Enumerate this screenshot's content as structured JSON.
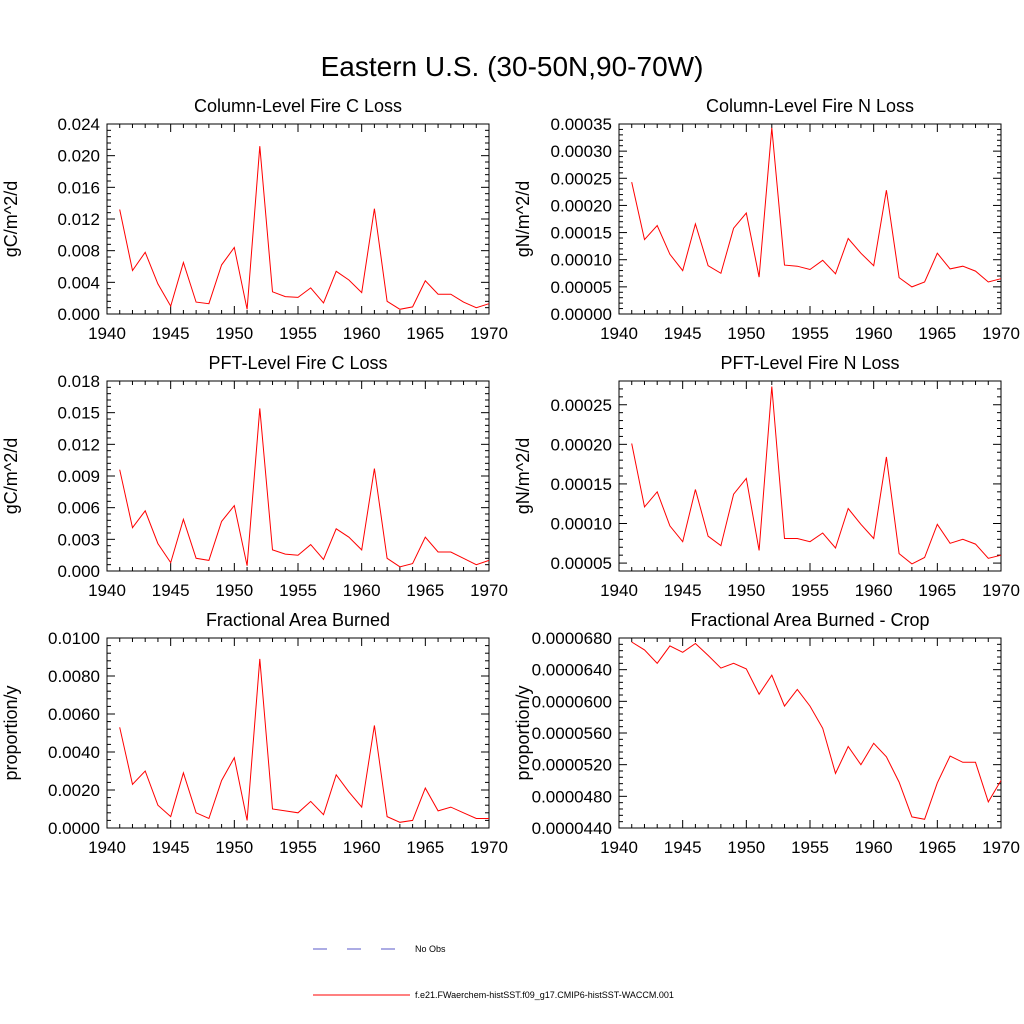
{
  "title": "Eastern U.S. (30-50N,90-70W)",
  "legend": [
    {
      "label": "No Obs",
      "color": "#5a5ac8",
      "dash": "dashed"
    },
    {
      "label": "f.e21.FWaerchem-histSST.f09_g17.CMIP6-histSST-WACCM.001",
      "color": "#ff0000",
      "dash": "solid"
    }
  ],
  "chart_data": [
    {
      "type": "line",
      "title": "Column-Level Fire C Loss",
      "ylabel": "gC/m^2/d",
      "xlabel": "",
      "xlim": [
        1940,
        1970
      ],
      "ylim": [
        0,
        0.024
      ],
      "yticks": [
        "0.000",
        "0.004",
        "0.008",
        "0.012",
        "0.016",
        "0.020",
        "0.024"
      ],
      "xticks": [
        "1940",
        "1945",
        "1950",
        "1955",
        "1960",
        "1965",
        "1970"
      ],
      "x": [
        1941,
        1942,
        1943,
        1944,
        1945,
        1946,
        1947,
        1948,
        1949,
        1950,
        1951,
        1952,
        1953,
        1954,
        1955,
        1956,
        1957,
        1958,
        1959,
        1960,
        1961,
        1962,
        1963,
        1964,
        1965,
        1966,
        1967,
        1968,
        1969,
        1970
      ],
      "series": [
        {
          "values": [
            0.0132,
            0.0055,
            0.0078,
            0.0038,
            0.001,
            0.0065,
            0.0015,
            0.0013,
            0.0062,
            0.0084,
            0.0006,
            0.0212,
            0.0028,
            0.0022,
            0.0021,
            0.0033,
            0.0014,
            0.0054,
            0.0043,
            0.0027,
            0.0133,
            0.0016,
            0.0006,
            0.0009,
            0.0042,
            0.0025,
            0.0025,
            0.0015,
            0.0008,
            0.0013
          ],
          "color": "#ff0000"
        }
      ]
    },
    {
      "type": "line",
      "title": "Column-Level Fire N Loss",
      "ylabel": "gN/m^2/d",
      "xlabel": "",
      "xlim": [
        1940,
        1970
      ],
      "ylim": [
        0,
        0.00035
      ],
      "yticks": [
        "0.00000",
        "0.00005",
        "0.00010",
        "0.00015",
        "0.00020",
        "0.00025",
        "0.00030",
        "0.00035"
      ],
      "xticks": [
        "1940",
        "1945",
        "1950",
        "1955",
        "1960",
        "1965",
        "1970"
      ],
      "x": [
        1941,
        1942,
        1943,
        1944,
        1945,
        1946,
        1947,
        1948,
        1949,
        1950,
        1951,
        1952,
        1953,
        1954,
        1955,
        1956,
        1957,
        1958,
        1959,
        1960,
        1961,
        1962,
        1963,
        1964,
        1965,
        1966,
        1967,
        1968,
        1969,
        1970
      ],
      "series": [
        {
          "values": [
            0.000243,
            0.000137,
            0.000163,
            0.00011,
            8e-05,
            0.000166,
            8.9e-05,
            7.5e-05,
            0.000158,
            0.000186,
            6.8e-05,
            0.000343,
            9e-05,
            8.8e-05,
            8.2e-05,
            9.9e-05,
            7.4e-05,
            0.000139,
            0.000112,
            8.9e-05,
            0.000228,
            6.7e-05,
            5e-05,
            5.9e-05,
            0.000112,
            8.3e-05,
            8.8e-05,
            7.9e-05,
            5.9e-05,
            6.5e-05
          ],
          "color": "#ff0000"
        }
      ]
    },
    {
      "type": "line",
      "title": "PFT-Level Fire C Loss",
      "ylabel": "gC/m^2/d",
      "xlabel": "",
      "xlim": [
        1940,
        1970
      ],
      "ylim": [
        0,
        0.018
      ],
      "yticks": [
        "0.000",
        "0.003",
        "0.006",
        "0.009",
        "0.012",
        "0.015",
        "0.018"
      ],
      "xticks": [
        "1940",
        "1945",
        "1950",
        "1955",
        "1960",
        "1965",
        "1970"
      ],
      "x": [
        1941,
        1942,
        1943,
        1944,
        1945,
        1946,
        1947,
        1948,
        1949,
        1950,
        1951,
        1952,
        1953,
        1954,
        1955,
        1956,
        1957,
        1958,
        1959,
        1960,
        1961,
        1962,
        1963,
        1964,
        1965,
        1966,
        1967,
        1968,
        1969,
        1970
      ],
      "series": [
        {
          "values": [
            0.0096,
            0.0041,
            0.0057,
            0.0026,
            0.0008,
            0.0049,
            0.0012,
            0.001,
            0.0047,
            0.0062,
            0.0005,
            0.0154,
            0.002,
            0.0016,
            0.0015,
            0.0025,
            0.0011,
            0.004,
            0.0032,
            0.002,
            0.0097,
            0.0012,
            0.0004,
            0.0007,
            0.0032,
            0.0018,
            0.0018,
            0.0012,
            0.0006,
            0.001
          ],
          "color": "#ff0000"
        }
      ]
    },
    {
      "type": "line",
      "title": "PFT-Level Fire N Loss",
      "ylabel": "gN/m^2/d",
      "xlabel": "",
      "xlim": [
        1940,
        1970
      ],
      "ylim": [
        4e-05,
        0.00028
      ],
      "yticks": [
        "0.00005",
        "0.00010",
        "0.00015",
        "0.00020",
        "0.00025"
      ],
      "ytick_values": [
        5e-05,
        0.0001,
        0.00015,
        0.0002,
        0.00025
      ],
      "xticks": [
        "1940",
        "1945",
        "1950",
        "1955",
        "1960",
        "1965",
        "1970"
      ],
      "x": [
        1941,
        1942,
        1943,
        1944,
        1945,
        1946,
        1947,
        1948,
        1949,
        1950,
        1951,
        1952,
        1953,
        1954,
        1955,
        1956,
        1957,
        1958,
        1959,
        1960,
        1961,
        1962,
        1963,
        1964,
        1965,
        1966,
        1967,
        1968,
        1969,
        1970
      ],
      "series": [
        {
          "values": [
            0.000201,
            0.000121,
            0.00014,
            9.7e-05,
            7.7e-05,
            0.000143,
            8.4e-05,
            7.2e-05,
            0.000137,
            0.000157,
            6.6e-05,
            0.000273,
            8.1e-05,
            8.1e-05,
            7.7e-05,
            8.8e-05,
            6.9e-05,
            0.000119,
            9.9e-05,
            8.1e-05,
            0.000184,
            6.2e-05,
            4.9e-05,
            5.7e-05,
            9.9e-05,
            7.5e-05,
            8e-05,
            7.4e-05,
            5.6e-05,
            6e-05
          ],
          "color": "#ff0000"
        }
      ]
    },
    {
      "type": "line",
      "title": "Fractional Area Burned",
      "ylabel": "proportion/y",
      "xlabel": "",
      "xlim": [
        1940,
        1970
      ],
      "ylim": [
        0,
        0.01
      ],
      "yticks": [
        "0.0000",
        "0.0020",
        "0.0040",
        "0.0060",
        "0.0080",
        "0.0100"
      ],
      "xticks": [
        "1940",
        "1945",
        "1950",
        "1955",
        "1960",
        "1965",
        "1970"
      ],
      "x": [
        1941,
        1942,
        1943,
        1944,
        1945,
        1946,
        1947,
        1948,
        1949,
        1950,
        1951,
        1952,
        1953,
        1954,
        1955,
        1956,
        1957,
        1958,
        1959,
        1960,
        1961,
        1962,
        1963,
        1964,
        1965,
        1966,
        1967,
        1968,
        1969,
        1970
      ],
      "series": [
        {
          "values": [
            0.0053,
            0.0023,
            0.003,
            0.0012,
            0.0006,
            0.0029,
            0.0008,
            0.0005,
            0.0025,
            0.0037,
            0.0004,
            0.0089,
            0.001,
            0.0009,
            0.0008,
            0.0014,
            0.0007,
            0.0028,
            0.0019,
            0.0011,
            0.0054,
            0.0006,
            0.0003,
            0.0004,
            0.0021,
            0.0009,
            0.0011,
            0.0008,
            0.0005,
            0.0005
          ],
          "color": "#ff0000"
        }
      ]
    },
    {
      "type": "line",
      "title": "Fractional Area Burned - Crop",
      "ylabel": "proportion/y",
      "xlabel": "",
      "xlim": [
        1940,
        1970
      ],
      "ylim": [
        4.4e-05,
        6.8e-05
      ],
      "yticks": [
        "0.0000440",
        "0.0000480",
        "0.0000520",
        "0.0000560",
        "0.0000600",
        "0.0000640",
        "0.0000680"
      ],
      "xticks": [
        "1940",
        "1945",
        "1950",
        "1955",
        "1960",
        "1965",
        "1970"
      ],
      "x": [
        1941,
        1942,
        1943,
        1944,
        1945,
        1946,
        1947,
        1948,
        1949,
        1950,
        1951,
        1952,
        1953,
        1954,
        1955,
        1956,
        1957,
        1958,
        1959,
        1960,
        1961,
        1962,
        1963,
        1964,
        1965,
        1966,
        1967,
        1968,
        1969,
        1970
      ],
      "series": [
        {
          "values": [
            6.75e-05,
            6.65e-05,
            6.48e-05,
            6.7e-05,
            6.62e-05,
            6.73e-05,
            6.58e-05,
            6.42e-05,
            6.48e-05,
            6.41e-05,
            6.09e-05,
            6.33e-05,
            5.94e-05,
            6.15e-05,
            5.94e-05,
            5.66e-05,
            5.09e-05,
            5.43e-05,
            5.2e-05,
            5.47e-05,
            5.3e-05,
            4.98e-05,
            4.54e-05,
            4.51e-05,
            4.97e-05,
            5.31e-05,
            5.23e-05,
            5.23e-05,
            4.73e-05,
            5e-05
          ],
          "color": "#ff0000"
        }
      ]
    }
  ]
}
